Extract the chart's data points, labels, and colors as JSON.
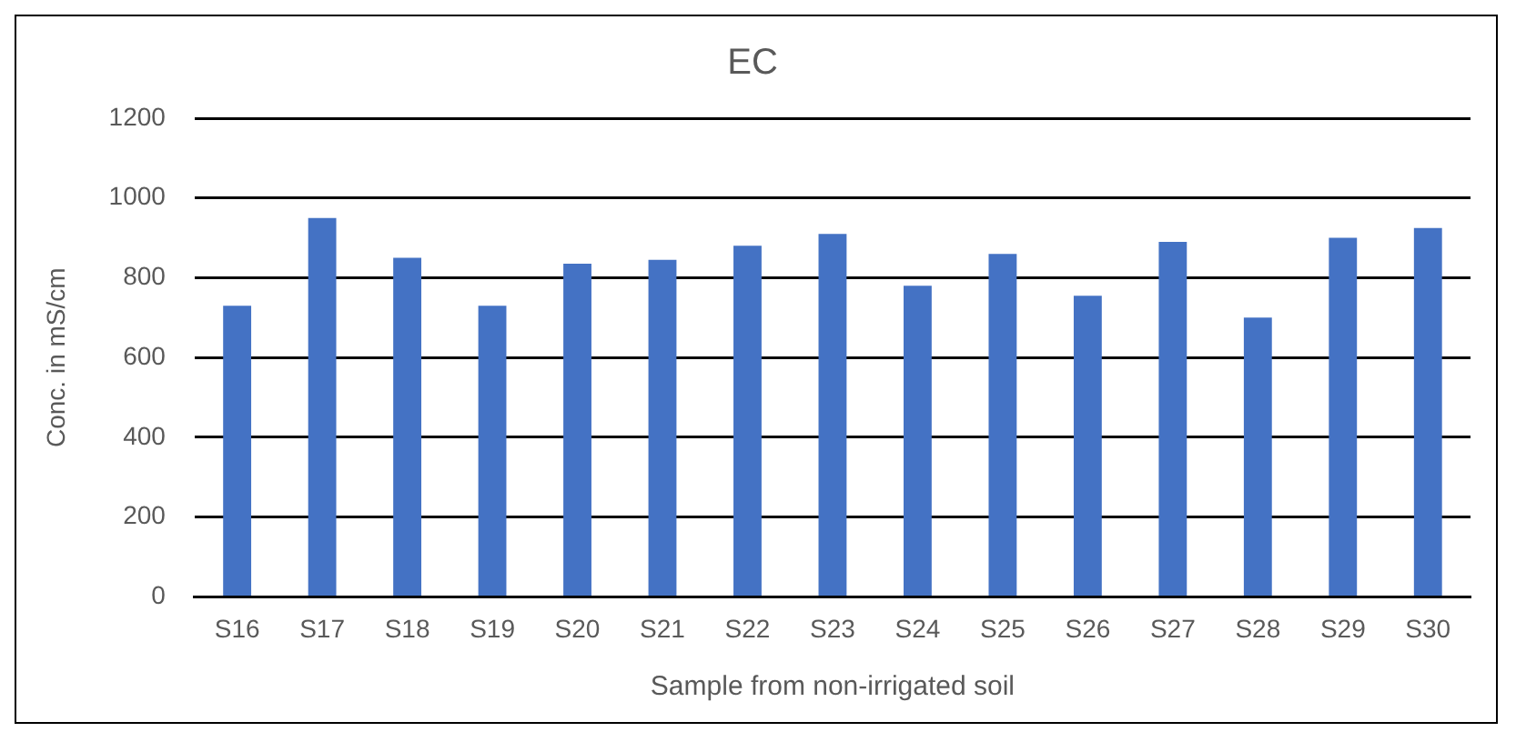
{
  "chart_data": {
    "type": "bar",
    "title": "EC",
    "xlabel": "Sample from non-irrigated soil",
    "ylabel": "Conc. in mS/cm",
    "categories": [
      "S16",
      "S17",
      "S18",
      "S19",
      "S20",
      "S21",
      "S22",
      "S23",
      "S24",
      "S25",
      "S26",
      "S27",
      "S28",
      "S29",
      "S30"
    ],
    "values": [
      730,
      950,
      850,
      730,
      835,
      845,
      880,
      910,
      780,
      860,
      755,
      890,
      700,
      900,
      925
    ],
    "color": "#4472c4",
    "ylim": [
      0,
      1200
    ],
    "yticks": [
      0,
      200,
      400,
      600,
      800,
      1000,
      1200
    ],
    "grid": "y",
    "legend": false
  }
}
